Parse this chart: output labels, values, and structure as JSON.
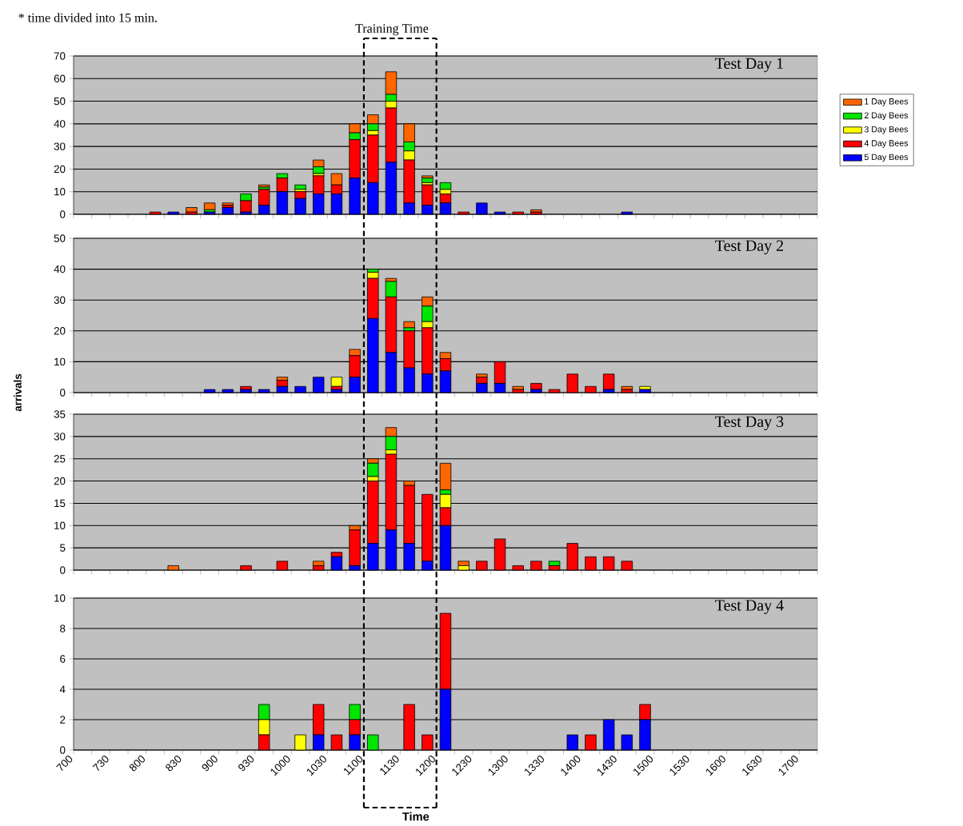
{
  "chart_data": [
    {
      "type": "bar",
      "title": "Test Day 1",
      "stacked": true,
      "grid": "y",
      "legend": "right",
      "tick_labels": "y",
      "categories": [
        "700",
        null,
        "730",
        null,
        "800",
        null,
        "830",
        null,
        "900",
        null,
        "930",
        null,
        "1000",
        null,
        "1030",
        null,
        "1100",
        null,
        "1130",
        null,
        "1200",
        null,
        "1230",
        null,
        "1300",
        null,
        "1330",
        null,
        "1400",
        null,
        "1430",
        null,
        "1500",
        null,
        "1530",
        null,
        "1600",
        null,
        "1630",
        null,
        "1700"
      ],
      "ylim": [
        0,
        70
      ],
      "yticks": [
        0,
        10,
        20,
        30,
        40,
        50,
        60,
        70
      ],
      "annotations": [
        "* time divided into 15 min."
      ],
      "ref_lines": [
        {
          "axis": "x",
          "value": "1100",
          "label": "Training Time",
          "line_style": "dashed"
        },
        {
          "axis": "x",
          "value": "1200",
          "line_style": "dashed"
        }
      ],
      "series": [
        {
          "name": "5 Day Bees",
          "color": "#0000ff",
          "values": [
            0,
            0,
            0,
            0,
            0,
            1,
            0,
            1,
            3,
            1,
            4,
            10,
            7,
            9,
            9,
            16,
            14,
            23,
            5,
            4,
            5,
            0,
            5,
            1,
            0,
            0,
            0,
            0,
            0,
            0,
            1,
            0,
            0,
            0,
            0,
            0,
            0,
            0,
            0,
            0,
            0
          ]
        },
        {
          "name": "4 Day Bees",
          "color": "#ff0000",
          "values": [
            0,
            0,
            0,
            0,
            1,
            0,
            1,
            0,
            1,
            5,
            7,
            6,
            3,
            8,
            4,
            17,
            21,
            24,
            19,
            9,
            4,
            1,
            0,
            0,
            1,
            1,
            0,
            0,
            0,
            0,
            0,
            0,
            0,
            0,
            0,
            0,
            0,
            0,
            0,
            0,
            0
          ]
        },
        {
          "name": "3 Day Bees",
          "color": "#ffff00",
          "values": [
            0,
            0,
            0,
            0,
            0,
            0,
            0,
            0,
            0,
            0,
            0,
            0,
            1,
            1,
            0,
            0,
            2,
            3,
            4,
            1,
            2,
            0,
            0,
            0,
            0,
            0,
            0,
            0,
            0,
            0,
            0,
            0,
            0,
            0,
            0,
            0,
            0,
            0,
            0,
            0,
            0
          ]
        },
        {
          "name": "2 Day Bees",
          "color": "#00e600",
          "values": [
            0,
            0,
            0,
            0,
            0,
            0,
            0,
            1,
            0,
            3,
            1,
            2,
            2,
            3,
            0,
            3,
            3,
            3,
            4,
            2,
            3,
            0,
            0,
            0,
            0,
            0,
            0,
            0,
            0,
            0,
            0,
            0,
            0,
            0,
            0,
            0,
            0,
            0,
            0,
            0,
            0
          ]
        },
        {
          "name": "1 Day Bees",
          "color": "#ff6600",
          "values": [
            0,
            0,
            0,
            0,
            0,
            0,
            2,
            3,
            1,
            0,
            1,
            0,
            0,
            3,
            5,
            4,
            4,
            10,
            8,
            1,
            0,
            0,
            0,
            0,
            0,
            1,
            0,
            0,
            0,
            0,
            0,
            0,
            0,
            0,
            0,
            0,
            0,
            0,
            0,
            0,
            0
          ]
        }
      ]
    },
    {
      "type": "bar",
      "title": "Test Day 2",
      "stacked": true,
      "grid": "y",
      "tick_labels": "y",
      "ylabel": "arrivals",
      "categories": [
        "700",
        null,
        "730",
        null,
        "800",
        null,
        "830",
        null,
        "900",
        null,
        "930",
        null,
        "1000",
        null,
        "1030",
        null,
        "1100",
        null,
        "1130",
        null,
        "1200",
        null,
        "1230",
        null,
        "1300",
        null,
        "1330",
        null,
        "1400",
        null,
        "1430",
        null,
        "1500",
        null,
        "1530",
        null,
        "1600",
        null,
        "1630",
        null,
        "1700"
      ],
      "ylim": [
        0,
        50
      ],
      "yticks": [
        0,
        10,
        20,
        30,
        40,
        50
      ],
      "series": [
        {
          "color": "#0000ff",
          "values": [
            0,
            0,
            0,
            0,
            0,
            0,
            0,
            1,
            1,
            1,
            1,
            2,
            2,
            5,
            1,
            5,
            24,
            13,
            8,
            6,
            7,
            0,
            3,
            3,
            0,
            1,
            0,
            0,
            0,
            1,
            0,
            1,
            0,
            0,
            0,
            0,
            0,
            0,
            0,
            0,
            0
          ]
        },
        {
          "color": "#ff0000",
          "values": [
            0,
            0,
            0,
            0,
            0,
            0,
            0,
            0,
            0,
            1,
            0,
            2,
            0,
            0,
            1,
            7,
            13,
            18,
            12,
            15,
            4,
            0,
            2,
            7,
            1,
            2,
            1,
            6,
            2,
            5,
            1,
            0,
            0,
            0,
            0,
            0,
            0,
            0,
            0,
            0,
            0
          ]
        },
        {
          "color": "#ffff00",
          "values": [
            0,
            0,
            0,
            0,
            0,
            0,
            0,
            0,
            0,
            0,
            0,
            0,
            0,
            0,
            3,
            0,
            2,
            0,
            0,
            2,
            0,
            0,
            0,
            0,
            0,
            0,
            0,
            0,
            0,
            0,
            0,
            1,
            0,
            0,
            0,
            0,
            0,
            0,
            0,
            0,
            0
          ]
        },
        {
          "color": "#00e600",
          "values": [
            0,
            0,
            0,
            0,
            0,
            0,
            0,
            0,
            0,
            0,
            0,
            0,
            0,
            0,
            0,
            0,
            1,
            5,
            1,
            5,
            0,
            0,
            0,
            0,
            0,
            0,
            0,
            0,
            0,
            0,
            0,
            0,
            0,
            0,
            0,
            0,
            0,
            0,
            0,
            0,
            0
          ]
        },
        {
          "color": "#ff6600",
          "values": [
            0,
            0,
            0,
            0,
            0,
            0,
            0,
            0,
            0,
            0,
            0,
            1,
            0,
            0,
            0,
            2,
            0,
            1,
            2,
            3,
            2,
            0,
            1,
            0,
            1,
            0,
            0,
            0,
            0,
            0,
            1,
            0,
            0,
            0,
            0,
            0,
            0,
            0,
            0,
            0,
            0
          ]
        }
      ]
    },
    {
      "type": "bar",
      "title": "Test Day 3",
      "stacked": true,
      "grid": "y",
      "tick_labels": "y",
      "categories": [
        "700",
        null,
        "730",
        null,
        "800",
        null,
        "830",
        null,
        "900",
        null,
        "930",
        null,
        "1000",
        null,
        "1030",
        null,
        "1100",
        null,
        "1130",
        null,
        "1200",
        null,
        "1230",
        null,
        "1300",
        null,
        "1330",
        null,
        "1400",
        null,
        "1430",
        null,
        "1500",
        null,
        "1530",
        null,
        "1600",
        null,
        "1630",
        null,
        "1700"
      ],
      "ylim": [
        0,
        35
      ],
      "yticks": [
        0,
        5,
        10,
        15,
        20,
        25,
        30,
        35
      ],
      "series": [
        {
          "color": "#0000ff",
          "values": [
            0,
            0,
            0,
            0,
            0,
            0,
            0,
            0,
            0,
            0,
            0,
            0,
            0,
            0,
            3,
            1,
            6,
            9,
            6,
            2,
            10,
            0,
            0,
            0,
            0,
            0,
            0,
            0,
            0,
            0,
            0,
            0,
            0,
            0,
            0,
            0,
            0,
            0,
            0,
            0,
            0
          ]
        },
        {
          "color": "#ff0000",
          "values": [
            0,
            0,
            0,
            0,
            0,
            0,
            0,
            0,
            0,
            1,
            0,
            2,
            0,
            1,
            1,
            8,
            14,
            17,
            13,
            15,
            4,
            0,
            2,
            7,
            1,
            2,
            1,
            6,
            3,
            3,
            2,
            0,
            0,
            0,
            0,
            0,
            0,
            0,
            0,
            0,
            0
          ]
        },
        {
          "color": "#ffff00",
          "values": [
            0,
            0,
            0,
            0,
            0,
            0,
            0,
            0,
            0,
            0,
            0,
            0,
            0,
            0,
            0,
            0,
            1,
            1,
            0,
            0,
            3,
            1,
            0,
            0,
            0,
            0,
            0,
            0,
            0,
            0,
            0,
            0,
            0,
            0,
            0,
            0,
            0,
            0,
            0,
            0,
            0
          ]
        },
        {
          "color": "#00e600",
          "values": [
            0,
            0,
            0,
            0,
            0,
            0,
            0,
            0,
            0,
            0,
            0,
            0,
            0,
            0,
            0,
            0,
            3,
            3,
            0,
            0,
            1,
            0,
            0,
            0,
            0,
            0,
            1,
            0,
            0,
            0,
            0,
            0,
            0,
            0,
            0,
            0,
            0,
            0,
            0,
            0,
            0
          ]
        },
        {
          "color": "#ff6600",
          "values": [
            0,
            0,
            0,
            0,
            0,
            1,
            0,
            0,
            0,
            0,
            0,
            0,
            0,
            1,
            0,
            1,
            1,
            2,
            1,
            0,
            6,
            1,
            0,
            0,
            0,
            0,
            0,
            0,
            0,
            0,
            0,
            0,
            0,
            0,
            0,
            0,
            0,
            0,
            0,
            0,
            0
          ]
        }
      ]
    },
    {
      "type": "bar",
      "title": "Test Day 4",
      "stacked": true,
      "grid": "y",
      "xlabel": "Time",
      "categories": [
        "700",
        null,
        "730",
        null,
        "800",
        null,
        "830",
        null,
        "900",
        null,
        "930",
        null,
        "1000",
        null,
        "1030",
        null,
        "1100",
        null,
        "1130",
        null,
        "1200",
        null,
        "1230",
        null,
        "1300",
        null,
        "1330",
        null,
        "1400",
        null,
        "1430",
        null,
        "1500",
        null,
        "1530",
        null,
        "1600",
        null,
        "1630",
        null,
        "1700"
      ],
      "ylim": [
        0,
        10
      ],
      "yticks": [
        0,
        2,
        4,
        6,
        8,
        10
      ],
      "series": [
        {
          "color": "#0000ff",
          "values": [
            0,
            0,
            0,
            0,
            0,
            0,
            0,
            0,
            0,
            0,
            0,
            0,
            0,
            1,
            0,
            1,
            0,
            0,
            0,
            0,
            4,
            0,
            0,
            0,
            0,
            0,
            0,
            1,
            0,
            2,
            1,
            2,
            0,
            0,
            0,
            0,
            0,
            0,
            0,
            0,
            0
          ]
        },
        {
          "color": "#ff0000",
          "values": [
            0,
            0,
            0,
            0,
            0,
            0,
            0,
            0,
            0,
            0,
            1,
            0,
            0,
            2,
            1,
            1,
            0,
            0,
            3,
            1,
            5,
            0,
            0,
            0,
            0,
            0,
            0,
            0,
            1,
            0,
            0,
            1,
            0,
            0,
            0,
            0,
            0,
            0,
            0,
            0,
            0
          ]
        },
        {
          "color": "#ffff00",
          "values": [
            0,
            0,
            0,
            0,
            0,
            0,
            0,
            0,
            0,
            0,
            1,
            0,
            1,
            0,
            0,
            0,
            0,
            0,
            0,
            0,
            0,
            0,
            0,
            0,
            0,
            0,
            0,
            0,
            0,
            0,
            0,
            0,
            0,
            0,
            0,
            0,
            0,
            0,
            0,
            0,
            0
          ]
        },
        {
          "color": "#00e600",
          "values": [
            0,
            0,
            0,
            0,
            0,
            0,
            0,
            0,
            0,
            0,
            1,
            0,
            0,
            0,
            0,
            1,
            1,
            0,
            0,
            0,
            0,
            0,
            0,
            0,
            0,
            0,
            0,
            0,
            0,
            0,
            0,
            0,
            0,
            0,
            0,
            0,
            0,
            0,
            0,
            0,
            0
          ]
        }
      ]
    }
  ]
}
